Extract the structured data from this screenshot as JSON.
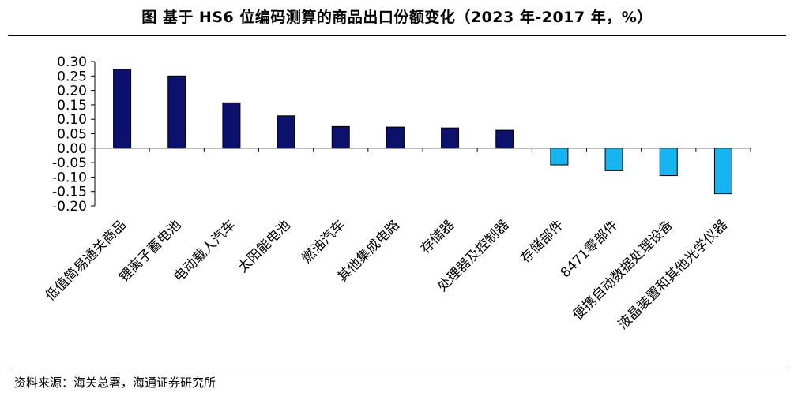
{
  "title": "图  基于 HS6 位编码测算的商品出口份额变化（2023 年-2017 年，%）",
  "source": "资料来源：海关总署，海通证券研究所",
  "colors": {
    "positive": "#0c116e",
    "negative": "#16b4f0"
  },
  "chart_data": {
    "type": "bar",
    "categories": [
      "低值简易通关商品",
      "锂离子蓄电池",
      "电动载人汽车",
      "太阳能电池",
      "燃油汽车",
      "其他集成电路",
      "存储器",
      "处理器及控制器",
      "存储部件",
      "8471零部件",
      "便携自动数据处理设备",
      "液晶装置和其他光学仪器"
    ],
    "values": [
      0.273,
      0.25,
      0.157,
      0.112,
      0.075,
      0.073,
      0.07,
      0.062,
      -0.058,
      -0.078,
      -0.095,
      -0.158
    ],
    "ylim": [
      -0.2,
      0.3
    ],
    "yticks": [
      "0.30",
      "0.25",
      "0.20",
      "0.15",
      "0.10",
      "0.05",
      "0.00",
      "-0.05",
      "-0.10",
      "-0.15",
      "-0.20"
    ],
    "xlabel": "",
    "ylabel": "",
    "grid": false
  }
}
